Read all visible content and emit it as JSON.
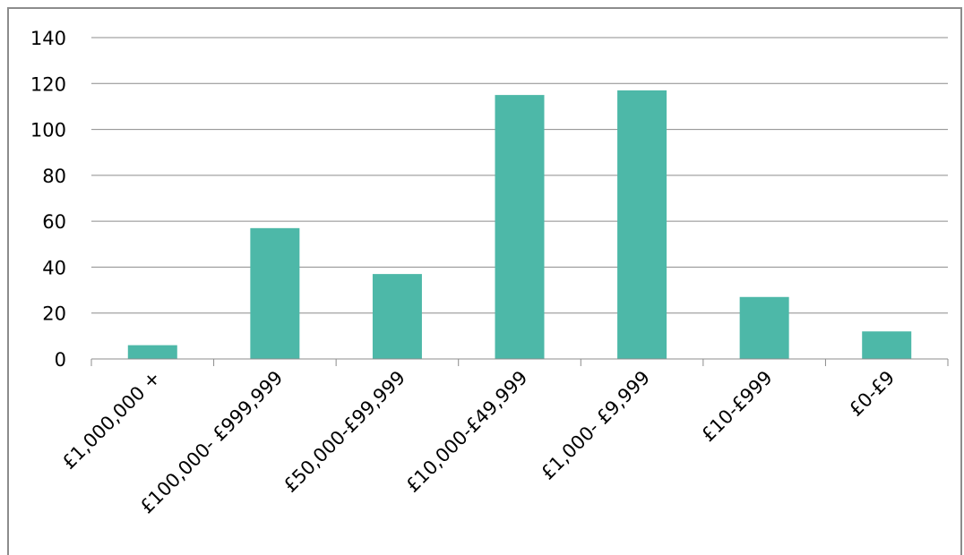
{
  "chart_data": {
    "type": "bar",
    "title": "",
    "xlabel": "",
    "ylabel": "",
    "categories": [
      "£1,000,000 +",
      "£100,000- £999,999",
      "£50,000-£99,999",
      "£10,000-£49,999",
      "£1,000- £9,999",
      "£10-£999",
      "£0-£9"
    ],
    "values": [
      6,
      57,
      37,
      115,
      117,
      27,
      12
    ],
    "ylim": [
      0,
      140
    ],
    "yticks": [
      0,
      20,
      40,
      60,
      80,
      100,
      120,
      140
    ],
    "grid": true,
    "legend": "none",
    "bar_color": "#4db8a8",
    "grid_color": "#8c8c8c"
  }
}
